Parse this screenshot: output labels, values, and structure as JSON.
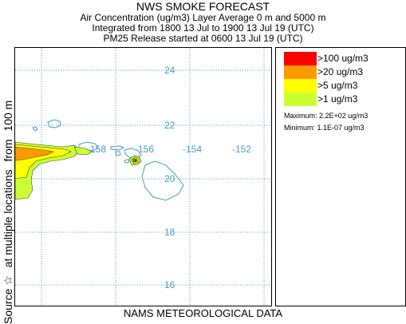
{
  "header": {
    "title": "NWS SMOKE FORECAST",
    "line1": "Air Concentration (ug/m3) Layer Average    0 m and  5000 m",
    "line2": "Integrated from 1800 13 Jul to 1900 13 Jul 19 (UTC)",
    "line3": "PM25 Release started at 0600 13 Jul 19 (UTC)"
  },
  "side_caption": {
    "source": "Source ☆",
    "locations": "at multiple locations",
    "from": "from",
    "height": "100 m"
  },
  "footer": {
    "text": "NAMS METEOROLOGICAL DATA"
  },
  "legend": {
    "items": [
      {
        "label": ">100 ug/m3",
        "color": "#ff0000"
      },
      {
        "label": ">20 ug/m3",
        "color": "#ff9900"
      },
      {
        "label": ">5 ug/m3",
        "color": "#ffff00"
      },
      {
        "label": ">1 ug/m3",
        "color": "#ccff33"
      }
    ],
    "maximum": "Maximum: 2.2E+02 ug/m3",
    "minimum": "Minimum: 1.1E-07 ug/m3"
  },
  "map": {
    "grid_color": "#4a9bc7",
    "coast_color": "#4a9bc7",
    "lat_labels": [
      "24",
      "22",
      "20",
      "18",
      "16"
    ],
    "lon_labels": [
      "-158",
      "-156",
      "-154",
      "-152"
    ]
  }
}
